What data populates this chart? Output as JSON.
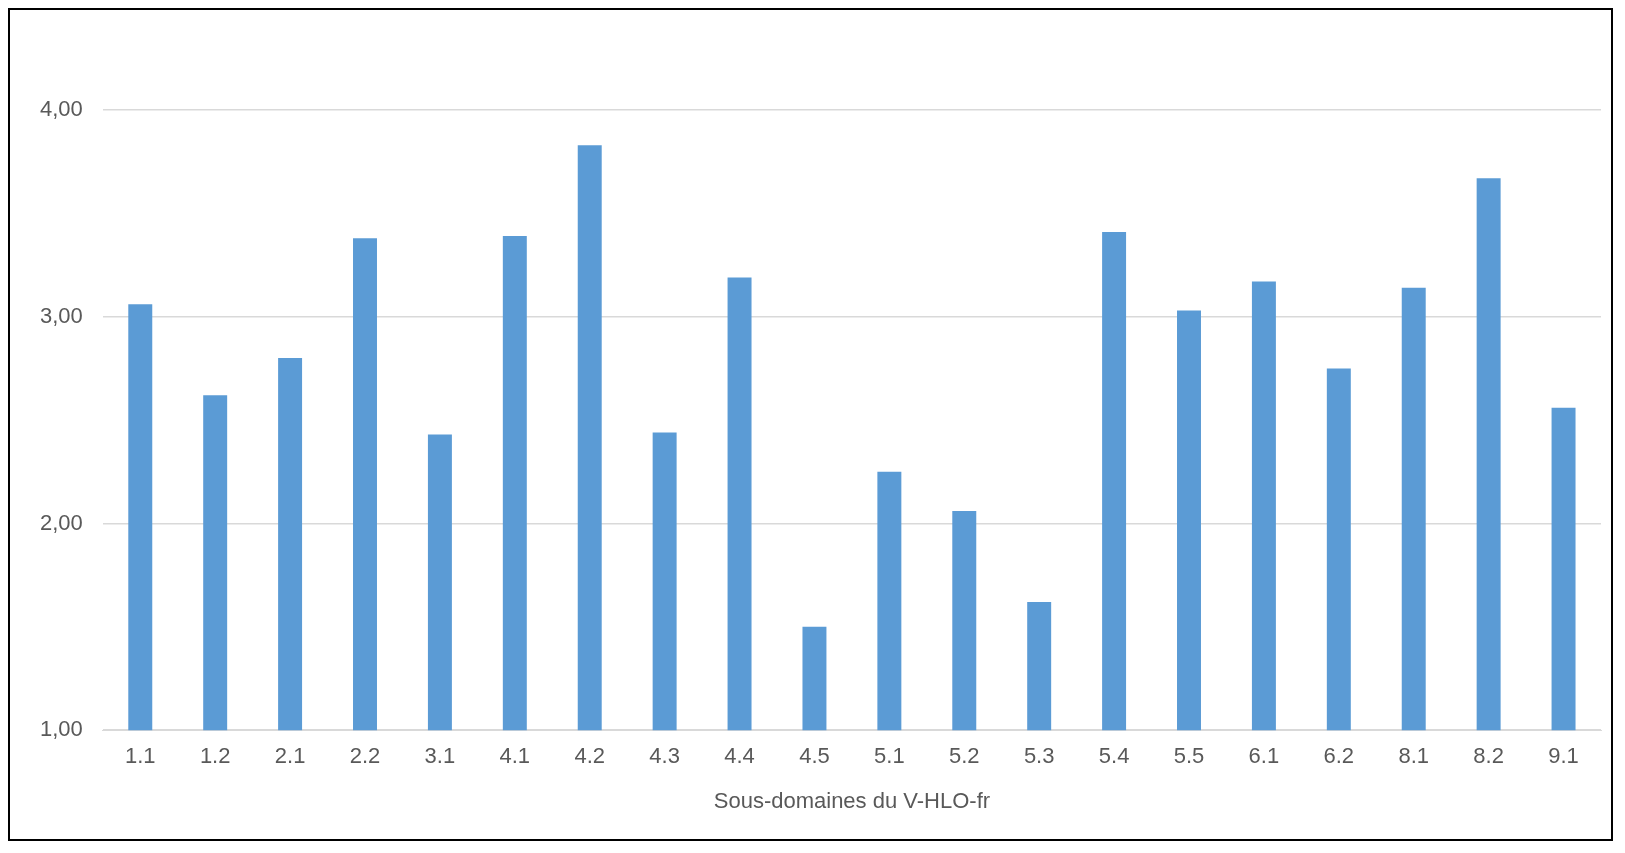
{
  "chart_data": {
    "type": "bar",
    "xlabel": "Sous-domaines du V-HLO-fr",
    "categories": [
      "1.1",
      "1.2",
      "2.1",
      "2.2",
      "3.1",
      "4.1",
      "4.2",
      "4.3",
      "4.4",
      "4.5",
      "5.1",
      "5.2",
      "5.3",
      "5.4",
      "5.5",
      "6.1",
      "6.2",
      "8.1",
      "8.2",
      "9.1"
    ],
    "values": [
      3.06,
      2.62,
      2.8,
      3.38,
      2.43,
      3.39,
      3.83,
      2.44,
      3.19,
      1.5,
      2.25,
      2.06,
      1.62,
      3.41,
      3.03,
      3.17,
      2.75,
      3.14,
      3.67,
      2.56
    ],
    "color": "#5b9bd5",
    "ylim": [
      1,
      4
    ],
    "yticks": [
      {
        "value": 1,
        "label": "1,00"
      },
      {
        "value": 2,
        "label": "2,00"
      },
      {
        "value": 3,
        "label": "3,00"
      },
      {
        "value": 4,
        "label": "4,00"
      }
    ],
    "grid": "y",
    "legend": false
  }
}
